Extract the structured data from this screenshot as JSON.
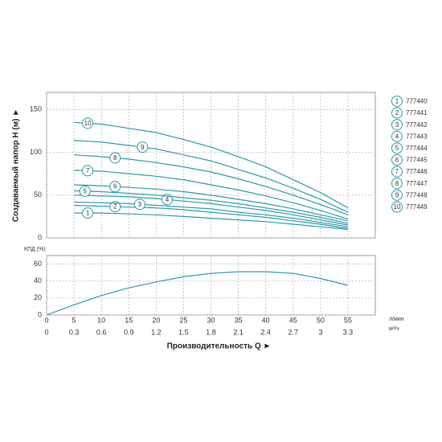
{
  "chart_data": [
    {
      "type": "line",
      "ylabel": "Создаваемый напор H (м) ►",
      "ylim": [
        0,
        170
      ],
      "yticks": [
        0,
        50,
        100,
        150
      ],
      "xlim": [
        0,
        60
      ],
      "xticks": [
        0,
        5,
        10,
        15,
        20,
        25,
        30,
        35,
        40,
        45,
        50,
        55
      ],
      "grid": true,
      "x": [
        5,
        10,
        15,
        20,
        25,
        30,
        35,
        40,
        45,
        50,
        55
      ],
      "series": [
        {
          "id": "1",
          "name": "777440",
          "color": "#2a9aa8",
          "values": [
            29,
            29,
            28,
            27,
            25,
            23,
            21,
            19,
            16,
            13,
            10
          ]
        },
        {
          "id": "2",
          "name": "777441",
          "color": "#2a9aa8",
          "values": [
            38,
            37,
            36,
            35,
            33,
            30,
            27,
            24,
            20,
            16,
            11
          ]
        },
        {
          "id": "3",
          "name": "777442",
          "color": "#2a9aa8",
          "values": [
            42,
            41,
            40,
            38,
            36,
            34,
            30,
            27,
            23,
            18,
            13
          ]
        },
        {
          "id": "4",
          "name": "777443",
          "color": "#2a9aa8",
          "values": [
            50,
            49,
            48,
            46,
            43,
            40,
            36,
            32,
            27,
            21,
            15
          ]
        },
        {
          "id": "5",
          "name": "777444",
          "color": "#2a9aa8",
          "values": [
            55,
            54,
            52,
            50,
            47,
            44,
            40,
            35,
            30,
            24,
            17
          ]
        },
        {
          "id": "6",
          "name": "777445",
          "color": "#2a9aa8",
          "values": [
            62,
            61,
            59,
            57,
            54,
            50,
            45,
            40,
            34,
            27,
            20
          ]
        },
        {
          "id": "7",
          "name": "777446",
          "color": "#2a9aa8",
          "values": [
            79,
            78,
            75,
            72,
            68,
            62,
            56,
            49,
            41,
            32,
            22
          ]
        },
        {
          "id": "8",
          "name": "777447",
          "color": "#2a9aa8",
          "values": [
            97,
            95,
            92,
            88,
            83,
            77,
            69,
            60,
            50,
            39,
            27
          ]
        },
        {
          "id": "9",
          "name": "777448",
          "color": "#2a9aa8",
          "values": [
            114,
            112,
            108,
            104,
            97,
            90,
            80,
            70,
            58,
            45,
            30
          ]
        },
        {
          "id": "10",
          "name": "777449",
          "color": "#2a9aa8",
          "values": [
            135,
            133,
            128,
            123,
            115,
            106,
            95,
            83,
            68,
            53,
            35
          ]
        }
      ]
    },
    {
      "type": "line",
      "ylabel": "КПД (%)",
      "xlabel": "Производительность Q ►",
      "ylim": [
        0,
        70
      ],
      "yticks": [
        0,
        20,
        40,
        60
      ],
      "xlim": [
        0,
        60
      ],
      "xticks": [
        0,
        5,
        10,
        15,
        20,
        25,
        30,
        35,
        40,
        45,
        50,
        55
      ],
      "x_unit": "л/мин",
      "x2lim": [
        0,
        3.6
      ],
      "x2ticks": [
        0,
        0.3,
        0.6,
        0.9,
        1.2,
        1.5,
        1.8,
        2.1,
        2.4,
        2.7,
        3.0,
        3.3
      ],
      "x2_unit": "м³/ч",
      "grid": true,
      "color": "#2a9aa8",
      "x": [
        0,
        5,
        10,
        15,
        20,
        25,
        30,
        35,
        40,
        45,
        50,
        55
      ],
      "values": [
        0,
        12,
        23,
        32,
        39,
        45,
        49,
        51,
        51,
        49,
        43,
        35
      ]
    }
  ]
}
